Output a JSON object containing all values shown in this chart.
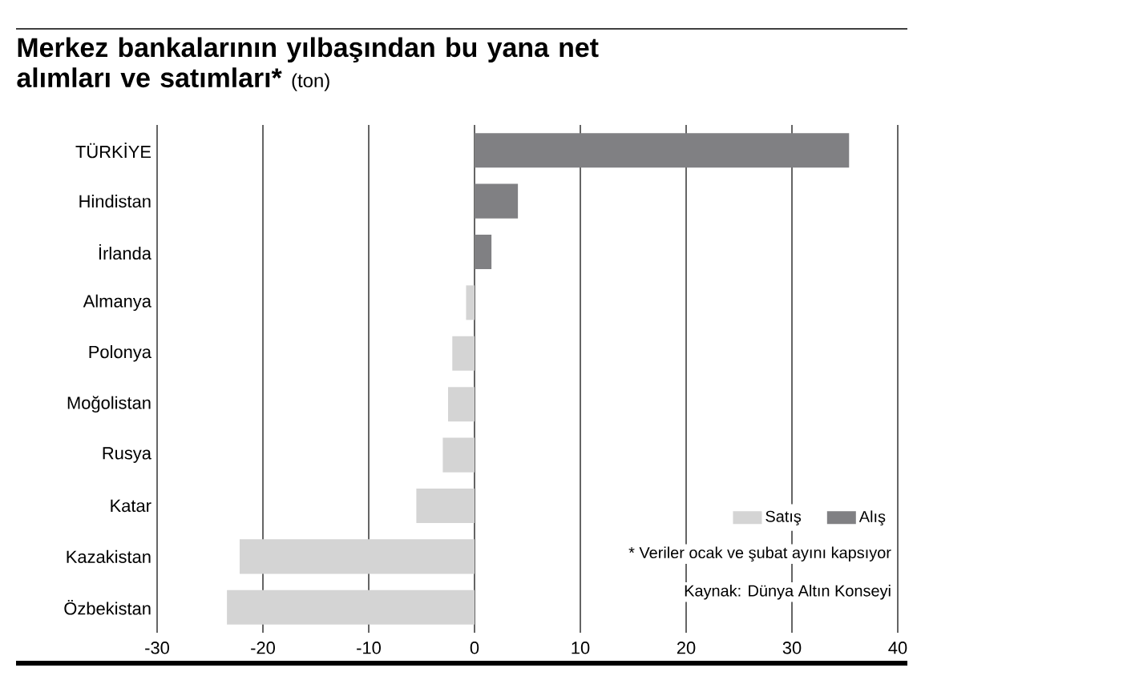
{
  "chart_data": {
    "type": "bar",
    "orientation": "horizontal",
    "title": "Merkez bankalarının yılbaşından bu yana net alımları ve satımları*",
    "subtitle": "(ton)",
    "categories": [
      "TÜRKİYE",
      "Hindistan",
      "İrlanda",
      "Almanya",
      "Polonya",
      "Moğolistan",
      "Rusya",
      "Katar",
      "Kazakistan",
      "Özbekistan"
    ],
    "series": [
      {
        "name": "Satış",
        "color": "#d4d4d4",
        "values": [
          null,
          null,
          null,
          -0.8,
          -2.1,
          -2.5,
          -3.0,
          -5.5,
          -22.2,
          -23.4
        ]
      },
      {
        "name": "Alış",
        "color": "#808083",
        "values": [
          35.4,
          4.1,
          1.6,
          null,
          null,
          null,
          null,
          null,
          null,
          null
        ]
      }
    ],
    "xlim": [
      -30,
      40
    ],
    "xticks": [
      -30,
      -20,
      -10,
      0,
      10,
      20,
      30,
      40
    ],
    "grid": "x",
    "legend": "bottom right",
    "annotations": [
      "* Veriler ocak ve şubat ayını kapsıyor",
      "Kaynak: Dünya Altın Konseyi"
    ]
  }
}
